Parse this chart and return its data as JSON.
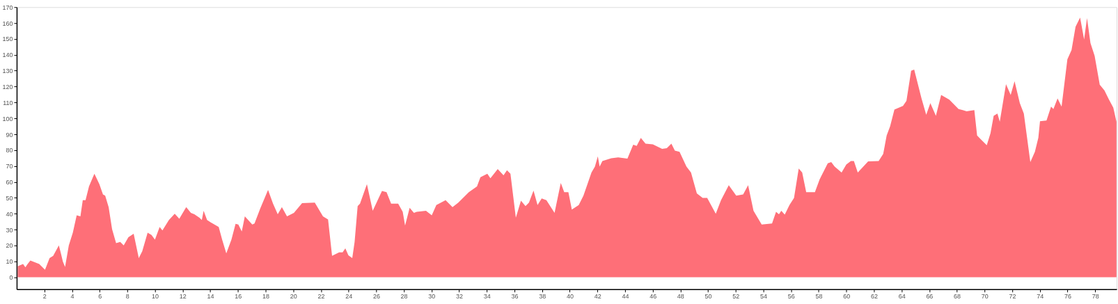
{
  "chart_data": {
    "type": "area",
    "color": "#fe6f78",
    "grid": false,
    "xlim": [
      0,
      79.55
    ],
    "ylim": [
      -7.5,
      170
    ],
    "xticks": [
      2,
      4,
      6,
      8,
      10,
      12,
      14,
      16,
      18,
      20,
      22,
      24,
      26,
      28,
      30,
      32,
      34,
      36,
      38,
      40,
      42,
      44,
      46,
      48,
      50,
      52,
      54,
      56,
      58,
      60,
      62,
      64,
      66,
      68,
      70,
      72,
      74,
      76,
      78
    ],
    "yticks": [
      0,
      10,
      20,
      30,
      40,
      50,
      60,
      70,
      80,
      90,
      100,
      110,
      120,
      130,
      140,
      150,
      160,
      170
    ],
    "x": [
      0.07,
      0.46,
      0.63,
      0.79,
      0.99,
      1.63,
      2.05,
      2.38,
      2.64,
      3.05,
      3.22,
      3.34,
      3.5,
      3.77,
      4.06,
      4.34,
      4.61,
      4.78,
      4.98,
      5.23,
      5.62,
      5.98,
      6.24,
      6.4,
      6.65,
      6.9,
      7.19,
      7.49,
      7.74,
      8.08,
      8.46,
      8.83,
      9.08,
      9.47,
      9.75,
      10.0,
      10.34,
      10.54,
      11.01,
      11.43,
      11.76,
      12.26,
      12.6,
      12.85,
      13.22,
      13.39,
      13.52,
      13.77,
      14.02,
      14.61,
      14.86,
      15.16,
      15.53,
      15.83,
      16.03,
      16.28,
      16.5,
      17.04,
      17.2,
      17.62,
      18.18,
      18.54,
      18.88,
      19.18,
      19.55,
      20.05,
      20.64,
      21.56,
      22.15,
      22.52,
      22.81,
      23.32,
      23.57,
      23.77,
      23.99,
      24.27,
      24.44,
      24.66,
      24.83,
      25.33,
      25.75,
      26.42,
      26.75,
      27.08,
      27.59,
      27.92,
      28.09,
      28.42,
      28.73,
      28.93,
      29.6,
      30.02,
      30.35,
      31.02,
      31.52,
      31.94,
      32.7,
      33.29,
      33.54,
      34.04,
      34.26,
      34.79,
      35.21,
      35.46,
      35.71,
      36.1,
      36.47,
      36.8,
      37.05,
      37.38,
      37.67,
      37.97,
      38.31,
      38.9,
      39.35,
      39.6,
      39.9,
      40.15,
      40.65,
      40.99,
      41.57,
      41.82,
      42.03,
      42.16,
      42.36,
      43.0,
      43.5,
      44.17,
      44.59,
      44.84,
      45.14,
      45.48,
      46.01,
      46.68,
      47.02,
      47.35,
      47.6,
      47.94,
      48.44,
      48.77,
      49.19,
      49.61,
      49.94,
      50.56,
      50.94,
      51.5,
      52.04,
      52.54,
      52.9,
      53.29,
      53.88,
      54.63,
      54.92,
      55.13,
      55.3,
      55.55,
      55.89,
      56.22,
      56.56,
      56.81,
      57.1,
      57.73,
      58.07,
      58.66,
      58.91,
      59.16,
      59.66,
      60.0,
      60.33,
      60.55,
      60.83,
      61.58,
      62.34,
      62.67,
      62.92,
      63.17,
      63.48,
      64.1,
      64.35,
      64.69,
      64.91,
      65.44,
      65.78,
      66.08,
      66.48,
      66.86,
      67.45,
      68.12,
      68.42,
      68.7,
      69.26,
      69.46,
      69.79,
      70.16,
      70.43,
      70.66,
      70.93,
      71.1,
      71.55,
      71.89,
      72.17,
      72.55,
      72.84,
      73.31,
      73.64,
      73.89,
      74.01,
      74.48,
      74.81,
      74.98,
      75.28,
      75.57,
      75.99,
      76.29,
      76.58,
      76.91,
      77.2,
      77.41,
      77.66,
      77.96,
      78.33,
      78.67,
      79.0,
      79.31,
      79.54
    ],
    "values": [
      7.0,
      8.4,
      6.3,
      8.4,
      10.6,
      8.4,
      4.8,
      12.1,
      13.5,
      20.1,
      14.3,
      9.9,
      6.5,
      20.1,
      28.1,
      39.0,
      38.3,
      48.5,
      48.5,
      57.2,
      65.2,
      58.6,
      52.1,
      51.4,
      44.1,
      30.3,
      21.5,
      22.3,
      20.1,
      25.2,
      27.4,
      12.1,
      16.4,
      28.1,
      26.6,
      23.7,
      31.7,
      29.5,
      36.1,
      40.0,
      36.8,
      44.1,
      40.5,
      39.7,
      37.5,
      36.1,
      41.9,
      36.1,
      34.6,
      31.7,
      23.7,
      15.0,
      23.7,
      33.6,
      33.2,
      28.8,
      38.3,
      33.2,
      33.9,
      43.4,
      55.0,
      46.3,
      39.7,
      44.1,
      38.3,
      40.5,
      46.7,
      47.0,
      38.3,
      36.4,
      13.5,
      15.7,
      15.7,
      18.2,
      13.8,
      12.1,
      22.3,
      44.8,
      46.3,
      58.6,
      41.9,
      54.3,
      53.6,
      46.3,
      46.3,
      41.2,
      32.5,
      43.7,
      40.5,
      41.2,
      41.9,
      39.0,
      45.5,
      48.5,
      44.1,
      47.0,
      53.6,
      57.2,
      63.0,
      65.2,
      62.3,
      68.1,
      64.2,
      67.4,
      65.2,
      37.5,
      48.2,
      44.8,
      47.0,
      54.6,
      45.5,
      49.6,
      48.5,
      40.5,
      59.4,
      53.6,
      53.6,
      42.6,
      45.5,
      51.4,
      65.9,
      69.6,
      76.1,
      69.6,
      73.2,
      74.9,
      75.4,
      74.7,
      83.4,
      82.7,
      87.7,
      84.1,
      83.7,
      80.8,
      81.2,
      84.1,
      79.7,
      79.0,
      69.6,
      65.9,
      52.8,
      49.9,
      49.9,
      40.0,
      48.5,
      57.9,
      51.4,
      52.1,
      57.9,
      41.9,
      33.2,
      33.9,
      41.2,
      39.7,
      41.9,
      39.4,
      45.5,
      49.9,
      68.5,
      65.9,
      53.6,
      53.6,
      61.6,
      71.7,
      72.5,
      69.6,
      65.9,
      71.0,
      73.2,
      73.2,
      65.9,
      72.9,
      73.2,
      77.6,
      89.2,
      95.0,
      105.5,
      107.8,
      111.0,
      130.0,
      130.7,
      112.5,
      102.3,
      109.6,
      101.6,
      114.7,
      111.8,
      105.9,
      105.2,
      104.5,
      105.2,
      89.2,
      86.3,
      83.1,
      90.7,
      101.6,
      103.0,
      97.9,
      121.5,
      114.7,
      123.4,
      109.6,
      103.0,
      72.5,
      79.0,
      87.8,
      98.2,
      98.7,
      107.4,
      105.9,
      112.5,
      107.4,
      137.2,
      143.0,
      157.6,
      163.4,
      149.6,
      163.1,
      147.4,
      139.4,
      121.2,
      117.6,
      111.8,
      106.7,
      97.9
    ]
  }
}
